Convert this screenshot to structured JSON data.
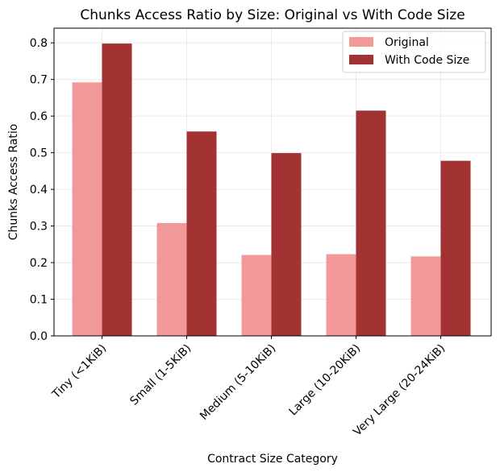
{
  "chart_data": {
    "type": "bar",
    "title": "Chunks Access Ratio by Size: Original vs With Code Size",
    "xlabel": "Contract Size Category",
    "ylabel": "Chunks Access Ratio",
    "categories": [
      "Tiny (<1KiB)",
      "Small (1-5KiB)",
      "Medium (5-10KiB)",
      "Large (10-20KiB)",
      "Very Large (20-24KiB)"
    ],
    "series": [
      {
        "name": "Original",
        "color": "#f19999",
        "values": [
          0.692,
          0.308,
          0.221,
          0.223,
          0.217
        ]
      },
      {
        "name": "With Code Size",
        "color": "#a33233",
        "values": [
          0.798,
          0.558,
          0.499,
          0.615,
          0.478
        ]
      }
    ],
    "ylim": [
      0,
      0.84
    ],
    "yticks": [
      "0.0",
      "0.1",
      "0.2",
      "0.3",
      "0.4",
      "0.5",
      "0.6",
      "0.7",
      "0.8"
    ],
    "grid": true,
    "legend_position": "top-right",
    "x_tick_rotation": "45 degrees"
  }
}
